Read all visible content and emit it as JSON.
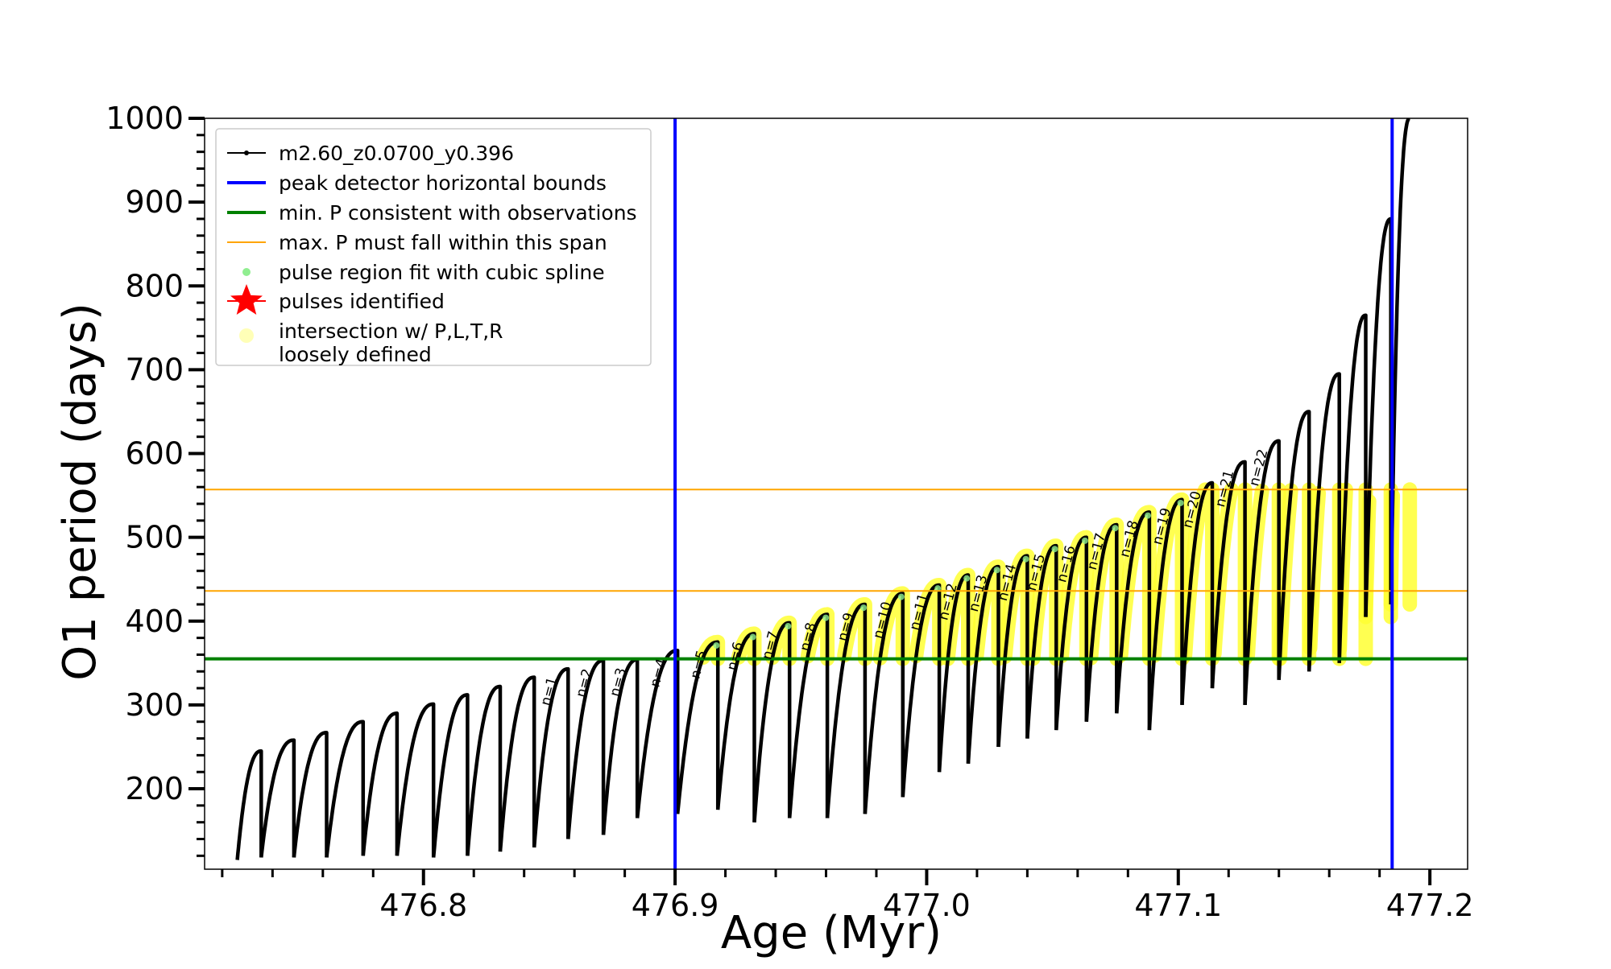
{
  "chart_data": {
    "type": "scatter",
    "xlabel": "Age (Myr)",
    "ylabel": "O1 period (days)",
    "xlim": [
      476.713,
      477.215
    ],
    "ylim": [
      104,
      1000
    ],
    "x_ticks": [
      "476.8",
      "476.9",
      "477.0",
      "477.1",
      "477.2"
    ],
    "y_ticks": [
      "200",
      "300",
      "400",
      "500",
      "600",
      "700",
      "800",
      "900",
      "1000"
    ],
    "grid": false,
    "legend_position": "top-left",
    "legend": [
      {
        "label": "m2.60_z0.0700_y0.396",
        "marker": "line-dot",
        "color": "#000000"
      },
      {
        "label": "peak detector horizontal bounds",
        "marker": "line",
        "color": "#0000ff"
      },
      {
        "label": "min. P consistent with observations",
        "marker": "line",
        "color": "#008000"
      },
      {
        "label": "max. P must fall within this span",
        "marker": "line",
        "color": "#ffa500"
      },
      {
        "label": "pulse region fit with cubic spline",
        "marker": "dot",
        "color": "#90ee90"
      },
      {
        "label": "pulses identified",
        "marker": "star",
        "color": "#ff0000"
      },
      {
        "label": "intersection w/ P,L,T,R\nloosely defined",
        "marker": "dot",
        "color": "#ffff99"
      }
    ],
    "reference_lines": {
      "vertical_blue": [
        476.9,
        477.185
      ],
      "horizontal_green": 355,
      "horizontal_orange": [
        436,
        557
      ]
    },
    "pulse_labels": [
      "n=1",
      "n=2",
      "n=3",
      "n=4",
      "n=5",
      "n=6",
      "n=7",
      "n=8",
      "n=9",
      "n=10",
      "n=11",
      "n=12",
      "n=13",
      "n=14",
      "n=15",
      "n=16",
      "n=17",
      "n=18",
      "n=19",
      "n=20",
      "n=21",
      "n=22"
    ],
    "series": [
      {
        "name": "m2.60_z0.0700_y0.396",
        "type": "sawtooth",
        "color": "#000000",
        "pulses": [
          {
            "x0": 476.726,
            "x1": 476.7355,
            "ymin": 115,
            "ymax": 245
          },
          {
            "x0": 476.7355,
            "x1": 476.7485,
            "ymin": 118,
            "ymax": 258
          },
          {
            "x0": 476.7485,
            "x1": 476.7615,
            "ymin": 118,
            "ymax": 267
          },
          {
            "x0": 476.7615,
            "x1": 476.776,
            "ymin": 118,
            "ymax": 280
          },
          {
            "x0": 476.776,
            "x1": 476.7895,
            "ymin": 120,
            "ymax": 290
          },
          {
            "x0": 476.7895,
            "x1": 476.804,
            "ymin": 120,
            "ymax": 301
          },
          {
            "x0": 476.804,
            "x1": 476.8175,
            "ymin": 118,
            "ymax": 312
          },
          {
            "x0": 476.8175,
            "x1": 476.8305,
            "ymin": 120,
            "ymax": 322
          },
          {
            "x0": 476.8305,
            "x1": 476.844,
            "ymin": 125,
            "ymax": 333
          },
          {
            "x0": 476.844,
            "x1": 476.8575,
            "ymin": 130,
            "ymax": 343
          },
          {
            "x0": 476.8575,
            "x1": 476.8715,
            "ymin": 140,
            "ymax": 353
          },
          {
            "x0": 476.8715,
            "x1": 476.885,
            "ymin": 145,
            "ymax": 354
          },
          {
            "x0": 476.885,
            "x1": 476.901,
            "ymin": 165,
            "ymax": 365
          },
          {
            "x0": 476.901,
            "x1": 476.917,
            "ymin": 170,
            "ymax": 375
          },
          {
            "x0": 476.917,
            "x1": 476.9315,
            "ymin": 175,
            "ymax": 385
          },
          {
            "x0": 476.9315,
            "x1": 476.9455,
            "ymin": 160,
            "ymax": 398
          },
          {
            "x0": 476.9455,
            "x1": 476.9605,
            "ymin": 165,
            "ymax": 408
          },
          {
            "x0": 476.9605,
            "x1": 476.9755,
            "ymin": 165,
            "ymax": 420
          },
          {
            "x0": 476.9755,
            "x1": 476.9905,
            "ymin": 170,
            "ymax": 433
          },
          {
            "x0": 476.9905,
            "x1": 477.005,
            "ymin": 190,
            "ymax": 443
          },
          {
            "x0": 477.005,
            "x1": 477.0165,
            "ymin": 220,
            "ymax": 455
          },
          {
            "x0": 477.0165,
            "x1": 477.0285,
            "ymin": 230,
            "ymax": 465
          },
          {
            "x0": 477.0285,
            "x1": 477.04,
            "ymin": 250,
            "ymax": 478
          },
          {
            "x0": 477.04,
            "x1": 477.0515,
            "ymin": 260,
            "ymax": 490
          },
          {
            "x0": 477.0515,
            "x1": 477.0635,
            "ymin": 270,
            "ymax": 500
          },
          {
            "x0": 477.0635,
            "x1": 477.0755,
            "ymin": 280,
            "ymax": 515
          },
          {
            "x0": 477.0755,
            "x1": 477.0885,
            "ymin": 290,
            "ymax": 530
          },
          {
            "x0": 477.0885,
            "x1": 477.1015,
            "ymin": 270,
            "ymax": 545
          },
          {
            "x0": 477.1015,
            "x1": 477.1135,
            "ymin": 300,
            "ymax": 565
          },
          {
            "x0": 477.1135,
            "x1": 477.1265,
            "ymin": 320,
            "ymax": 590
          },
          {
            "x0": 477.1265,
            "x1": 477.14,
            "ymin": 300,
            "ymax": 615
          },
          {
            "x0": 477.14,
            "x1": 477.152,
            "ymin": 330,
            "ymax": 650
          },
          {
            "x0": 477.152,
            "x1": 477.164,
            "ymin": 340,
            "ymax": 695
          },
          {
            "x0": 477.164,
            "x1": 477.1745,
            "ymin": 350,
            "ymax": 765
          },
          {
            "x0": 477.1745,
            "x1": 477.1845,
            "ymin": 405,
            "ymax": 880
          },
          {
            "x0": 477.1845,
            "x1": 477.192,
            "ymin": 420,
            "ymax": 1000
          }
        ]
      },
      {
        "name": "intersection w/ P,L,T,R loosely defined",
        "type": "highlight-band",
        "color": "#ffff33",
        "ymin": 355,
        "ymax": 557
      }
    ]
  }
}
